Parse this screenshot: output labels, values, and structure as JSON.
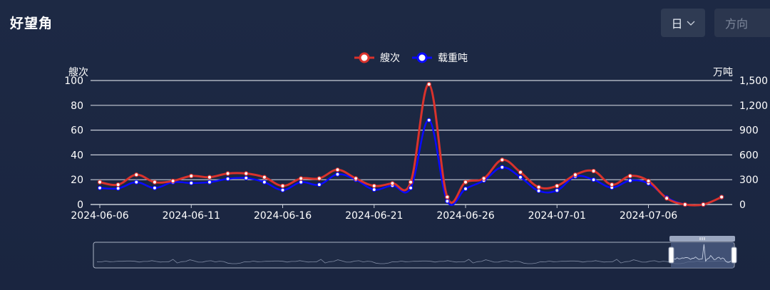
{
  "header": {
    "title": "好望角",
    "period_select": "日",
    "direction_placeholder": "方向"
  },
  "colors": {
    "background": "#1c2740",
    "series_ships": "#d9322c",
    "series_tonnage": "#0a0aff",
    "grid": "#c8cdd8",
    "axis_text": "#ffffff",
    "slider_fill": "#4d5f85"
  },
  "icons": {
    "period_dropdown": "chevron-down-icon"
  },
  "chart_data": {
    "type": "line",
    "legend": [
      "艘次",
      "载重吨"
    ],
    "legend_placement": "top-center",
    "grid": true,
    "x": [
      "2024-06-06",
      "2024-06-07",
      "2024-06-08",
      "2024-06-09",
      "2024-06-10",
      "2024-06-11",
      "2024-06-12",
      "2024-06-13",
      "2024-06-14",
      "2024-06-15",
      "2024-06-16",
      "2024-06-17",
      "2024-06-18",
      "2024-06-19",
      "2024-06-20",
      "2024-06-21",
      "2024-06-22",
      "2024-06-23",
      "2024-06-24",
      "2024-06-25",
      "2024-06-26",
      "2024-06-27",
      "2024-06-28",
      "2024-06-29",
      "2024-06-30",
      "2024-07-01",
      "2024-07-02",
      "2024-07-03",
      "2024-07-04",
      "2024-07-05",
      "2024-07-06",
      "2024-07-07",
      "2024-07-08",
      "2024-07-09",
      "2024-07-10"
    ],
    "x_tick_labels": [
      "2024-06-06",
      "2024-06-11",
      "2024-06-16",
      "2024-06-21",
      "2024-06-26",
      "2024-07-01",
      "2024-07-06"
    ],
    "series": [
      {
        "name": "艘次",
        "axis": "left",
        "values": [
          18,
          16,
          24,
          18,
          19,
          23,
          22,
          25,
          25,
          22,
          15,
          21,
          21,
          28,
          21,
          15,
          17,
          18,
          97,
          6,
          18,
          21,
          36,
          26,
          14,
          15,
          24,
          27,
          16,
          23,
          19,
          5,
          0,
          0,
          6
        ]
      },
      {
        "name": "载重吨",
        "axis": "right",
        "values": [
          200,
          195,
          270,
          200,
          270,
          260,
          270,
          310,
          320,
          270,
          175,
          270,
          240,
          365,
          300,
          180,
          230,
          200,
          1020,
          40,
          190,
          290,
          450,
          330,
          165,
          170,
          340,
          300,
          205,
          290,
          255,
          85,
          0,
          0,
          90
        ]
      }
    ],
    "y_left": {
      "label": "艘次",
      "lim": [
        0,
        100
      ],
      "ticks": [
        "0",
        "20",
        "40",
        "60",
        "80",
        "100"
      ]
    },
    "y_right": {
      "label": "万吨",
      "lim": [
        0,
        1500
      ],
      "ticks": [
        "0",
        "300",
        "600",
        "900",
        "1,200",
        "1,500"
      ]
    }
  }
}
